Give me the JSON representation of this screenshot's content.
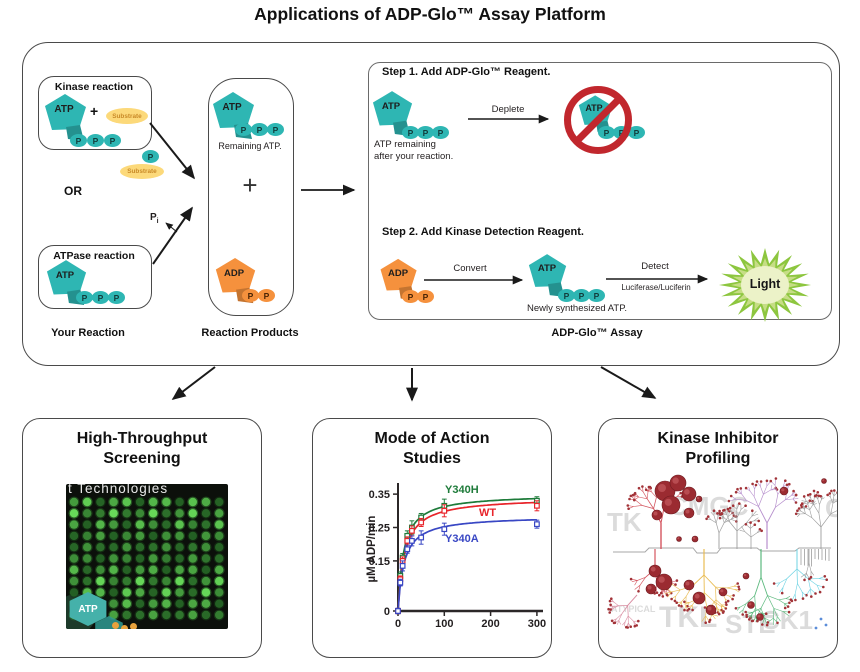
{
  "title": "Applications of ADP-Glo™ Assay Platform",
  "labels": {
    "atp": "ATP",
    "adp": "ADP",
    "p": "P",
    "plus": "+",
    "or": "OR",
    "pi_main": "P",
    "pi_sub": "i",
    "substrate": "Substrate"
  },
  "flow": {
    "kinase_box_title": "Kinase reaction",
    "atpase_box_title": "ATPase reaction",
    "your_reaction": "Your Reaction",
    "reaction_products": "Reaction Products",
    "remaining_atp": "Remaining ATP.",
    "assay_label": "ADP-Glo™ Assay"
  },
  "assay": {
    "step1_title": "Step 1. Add ADP-Glo™ Reagent.",
    "atp_remaining_line1": "ATP remaining",
    "atp_remaining_line2": "after your reaction.",
    "deplete": "Deplete",
    "step2_title": "Step 2. Add Kinase Detection Reagent.",
    "convert": "Convert",
    "newly_synthesized": "Newly synthesized ATP.",
    "detect": "Detect",
    "detect_sub": "Luciferase/Luciferin",
    "light": "Light"
  },
  "panels": [
    {
      "title_line1": "High-Throughput",
      "title_line2": "Screening",
      "overlay_text": "t Technologies",
      "badge": "ATP"
    },
    {
      "title_line1": "Mode of Action",
      "title_line2": "Studies"
    },
    {
      "title_line1": "Kinase Inhibitor",
      "title_line2": "Profiling",
      "watermarks": [
        "TK",
        "CMGC",
        "C",
        "ATYPICAL",
        "TKL",
        "STE",
        "CK1"
      ]
    }
  ],
  "chart_data": {
    "type": "line",
    "title": "Mode of Action Studies",
    "xlabel": "",
    "ylabel": "µM ADP/min",
    "x_ticks": [
      0,
      100,
      200,
      300
    ],
    "y_ticks": [
      0,
      0.15,
      0.25,
      0.35
    ],
    "xlim": [
      0,
      310
    ],
    "ylim": [
      0,
      0.37
    ],
    "grid": false,
    "series": [
      {
        "name": "Y340H",
        "color": "#1e7b3a",
        "fit": {
          "vmax": 0.35,
          "km": 12
        },
        "points": [
          [
            0,
            0,
            0.008
          ],
          [
            5,
            0.105,
            0.012
          ],
          [
            10,
            0.16,
            0.012
          ],
          [
            20,
            0.225,
            0.015
          ],
          [
            30,
            0.25,
            0.02
          ],
          [
            50,
            0.28,
            0.012
          ],
          [
            100,
            0.315,
            0.02
          ],
          [
            300,
            0.33,
            0.012
          ]
        ]
      },
      {
        "name": "WT",
        "color": "#e8252b",
        "fit": {
          "vmax": 0.34,
          "km": 14
        },
        "points": [
          [
            0,
            0,
            0.008
          ],
          [
            5,
            0.095,
            0.01
          ],
          [
            10,
            0.15,
            0.012
          ],
          [
            20,
            0.21,
            0.012
          ],
          [
            30,
            0.24,
            0.015
          ],
          [
            50,
            0.265,
            0.012
          ],
          [
            100,
            0.3,
            0.018
          ],
          [
            300,
            0.315,
            0.015
          ]
        ]
      },
      {
        "name": "Y340A",
        "color": "#3947c4",
        "fit": {
          "vmax": 0.285,
          "km": 13
        },
        "points": [
          [
            0,
            0,
            0.008
          ],
          [
            5,
            0.085,
            0.01
          ],
          [
            10,
            0.135,
            0.015
          ],
          [
            20,
            0.185,
            0.012
          ],
          [
            30,
            0.21,
            0.015
          ],
          [
            50,
            0.22,
            0.02
          ],
          [
            100,
            0.245,
            0.018
          ],
          [
            300,
            0.26,
            0.012
          ]
        ]
      }
    ]
  },
  "colors": {
    "teal": "#2eb6b3",
    "orange": "#f5913d",
    "substrate_yellow": "#fcd97a",
    "prohibit_red": "#c1272d",
    "light_green": "#8dc63f",
    "border": "#4a4a4a"
  }
}
